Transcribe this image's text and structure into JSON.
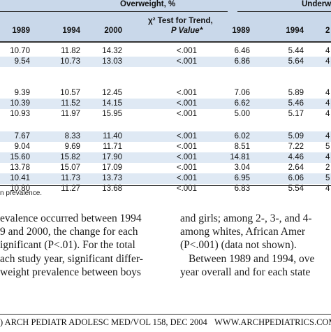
{
  "table": {
    "groups": {
      "overweight": "Overweight, %",
      "underweight": "Underw"
    },
    "col_headers": {
      "ow_1989": "1989",
      "ow_1994": "1994",
      "ow_2000": "2000",
      "trend_line1": "χ² Test for Trend,",
      "trend_line2": "P Value*",
      "uw_1989": "1989",
      "uw_1994": "1994",
      "uw_2000": "2"
    },
    "row_groups": [
      [
        [
          "10.70",
          "11.82",
          "14.32",
          "<.001",
          "6.46",
          "5.44",
          "4"
        ],
        [
          "9.54",
          "10.73",
          "13.03",
          "<.001",
          "6.86",
          "5.64",
          "4"
        ]
      ],
      [
        [
          "9.39",
          "10.57",
          "12.45",
          "<.001",
          "7.06",
          "5.89",
          "4"
        ],
        [
          "10.39",
          "11.52",
          "14.15",
          "<.001",
          "6.62",
          "5.46",
          "4"
        ],
        [
          "10.93",
          "11.97",
          "15.95",
          "<.001",
          "5.00",
          "5.17",
          "4"
        ]
      ],
      [
        [
          "7.67",
          "8.33",
          "11.40",
          "<.001",
          "6.02",
          "5.09",
          "4"
        ],
        [
          "9.04",
          "9.69",
          "11.71",
          "<.001",
          "8.51",
          "7.22",
          "5"
        ],
        [
          "15.60",
          "15.82",
          "17.90",
          "<.001",
          "14.81",
          "4.46",
          "4"
        ],
        [
          "13.78",
          "15.07",
          "17.09",
          "<.001",
          "3.04",
          "2.64",
          "2"
        ],
        [
          "10.41",
          "11.73",
          "13.73",
          "<.001",
          "6.95",
          "6.06",
          "5"
        ],
        [
          "10.80",
          "11.27",
          "13.68",
          "<.001",
          "6.83",
          "5.54",
          "4"
        ]
      ]
    ],
    "footnote": "n prevalence."
  },
  "body_left": [
    "evalence occurred between 1994",
    "9 and 2000, the change for each",
    "ignificant (P<.01). For the total",
    "ach study year, significant differ-",
    "weight prevalence between boys"
  ],
  "body_right": [
    "and girls; among 2-, 3-, and 4-",
    "among whites, African Amer",
    "(P<.001) (data not shown).",
    "Between 1989 and 1994, ove",
    "year overall and for each state"
  ],
  "running_head": {
    "left": ") ARCH PEDIATR ADOLESC MED/VOL 158, DEC 2004",
    "right": "WWW.ARCHPEDIATRICS.COM"
  }
}
